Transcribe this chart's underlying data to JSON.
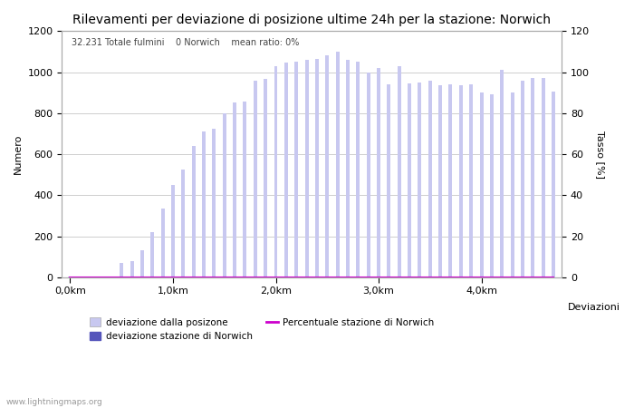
{
  "title": "Rilevamenti per deviazione di posizione ultime 24h per la stazione: Norwich",
  "subtitle": "32.231 Totale fulmini    0 Norwich    mean ratio: 0%",
  "xlabel": "Deviazioni",
  "ylabel_left": "Numero",
  "ylabel_right": "Tasso [%]",
  "bar_color_light": "#c8c8f0",
  "bar_color_dark": "#5555bb",
  "line_color": "#cc00cc",
  "watermark": "www.lightningmaps.org",
  "x_tick_labels": [
    "0,0km",
    "1,0km",
    "2,0km",
    "3,0km",
    "4,0km"
  ],
  "x_tick_positions": [
    0,
    10,
    20,
    30,
    40
  ],
  "ylim_left": [
    0,
    1200
  ],
  "ylim_right": [
    0,
    120
  ],
  "yticks_left": [
    0,
    200,
    400,
    600,
    800,
    1000,
    1200
  ],
  "yticks_right": [
    0,
    20,
    40,
    60,
    80,
    100,
    120
  ],
  "bar_values": [
    2,
    1,
    1,
    1,
    1,
    70,
    80,
    130,
    220,
    335,
    450,
    525,
    640,
    710,
    725,
    800,
    850,
    855,
    960,
    965,
    1030,
    1045,
    1050,
    1060,
    1065,
    1080,
    1100,
    1060,
    1050,
    1000,
    1020,
    940,
    1030,
    945,
    950,
    960,
    935,
    940,
    935,
    940,
    900,
    890,
    1010,
    900,
    960,
    970,
    970,
    905
  ],
  "station_bar_values": [
    0,
    0,
    0,
    0,
    0,
    0,
    0,
    0,
    0,
    0,
    0,
    0,
    0,
    0,
    0,
    0,
    0,
    0,
    0,
    0,
    0,
    0,
    0,
    0,
    0,
    0,
    0,
    0,
    0,
    0,
    0,
    0,
    0,
    0,
    0,
    0,
    0,
    0,
    0,
    0,
    0,
    0,
    0,
    0,
    0,
    0,
    0,
    0
  ],
  "ratio_values": [
    0,
    0,
    0,
    0,
    0,
    0,
    0,
    0,
    0,
    0,
    0,
    0,
    0,
    0,
    0,
    0,
    0,
    0,
    0,
    0,
    0,
    0,
    0,
    0,
    0,
    0,
    0,
    0,
    0,
    0,
    0,
    0,
    0,
    0,
    0,
    0,
    0,
    0,
    0,
    0,
    0,
    0,
    0,
    0,
    0,
    0,
    0,
    0
  ],
  "legend_label_bar_light": "deviazione dalla posizone",
  "legend_label_bar_dark": "deviazione stazione di Norwich",
  "legend_label_line": "Percentuale stazione di Norwich",
  "title_fontsize": 10,
  "axis_fontsize": 8,
  "tick_fontsize": 8,
  "background_color": "#ffffff",
  "grid_color": "#bbbbbb"
}
